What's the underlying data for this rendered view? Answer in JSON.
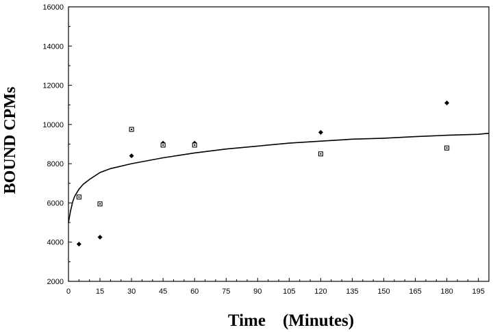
{
  "chart_data": {
    "type": "scatter",
    "xlabel": "Time    (Minutes)",
    "ylabel": "BOUND CPMs",
    "xlim": [
      0,
      200
    ],
    "ylim": [
      2000,
      16000
    ],
    "xticks": [
      0,
      15,
      30,
      45,
      60,
      75,
      90,
      105,
      120,
      135,
      150,
      165,
      180,
      195
    ],
    "yticks": [
      2000,
      4000,
      6000,
      8000,
      10000,
      12000,
      14000,
      16000
    ],
    "grid": false,
    "series": [
      {
        "marker": "diamond-filled",
        "x": [
          5,
          15,
          30,
          45,
          60,
          120,
          180
        ],
        "y": [
          3900,
          4250,
          8400,
          9050,
          9050,
          9600,
          11100
        ]
      },
      {
        "marker": "square-open",
        "x": [
          5,
          15,
          30,
          45,
          60,
          120,
          180
        ],
        "y": [
          6300,
          5950,
          9750,
          8950,
          8950,
          8500,
          8800
        ]
      },
      {
        "style": "line",
        "x": [
          0,
          1,
          2,
          3,
          5,
          7,
          10,
          15,
          20,
          30,
          45,
          60,
          75,
          90,
          105,
          120,
          135,
          150,
          165,
          180,
          195,
          200
        ],
        "y": [
          5000,
          5600,
          6050,
          6350,
          6700,
          6950,
          7200,
          7550,
          7750,
          8000,
          8300,
          8550,
          8750,
          8900,
          9050,
          9150,
          9250,
          9300,
          9380,
          9450,
          9500,
          9550
        ]
      }
    ]
  }
}
